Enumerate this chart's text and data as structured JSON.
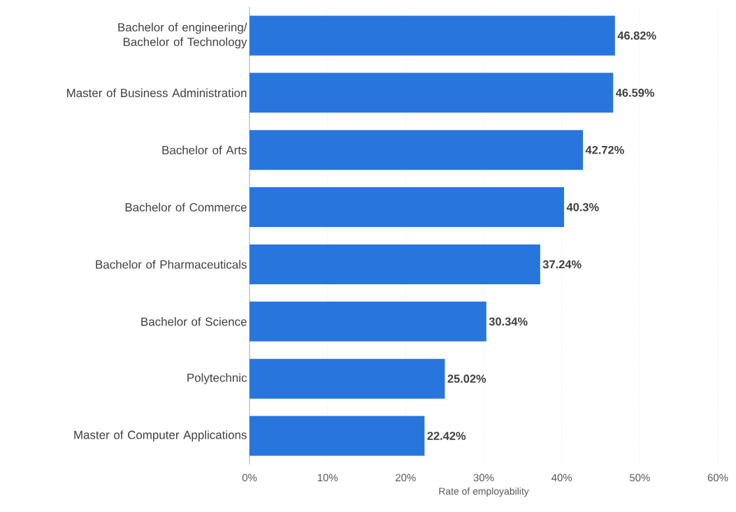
{
  "chart_data": {
    "type": "bar",
    "orientation": "horizontal",
    "xlabel": "Rate of employability",
    "categories": [
      "Bachelor of engineering/ Bachelor of Technology",
      "Master of Business Administration",
      "Bachelor of Arts",
      "Bachelor of Commerce",
      "Bachelor of Pharmaceuticals",
      "Bachelor of Science",
      "Polytechnic",
      "Master of Computer Applications"
    ],
    "values": [
      46.82,
      46.59,
      42.72,
      40.3,
      37.24,
      30.34,
      25.02,
      22.42
    ],
    "value_labels": [
      "46.82%",
      "46.59%",
      "42.72%",
      "40.3%",
      "37.24%",
      "30.34%",
      "25.02%",
      "22.42%"
    ],
    "color": "#2876dd",
    "xlim": [
      0,
      60
    ],
    "xticks": [
      {
        "value": 0,
        "label": "0%"
      },
      {
        "value": 10,
        "label": "10%"
      },
      {
        "value": 20,
        "label": "20%"
      },
      {
        "value": 30,
        "label": "30%"
      },
      {
        "value": 40,
        "label": "40%"
      },
      {
        "value": 50,
        "label": "50%"
      },
      {
        "value": 60,
        "label": "60%"
      }
    ],
    "grid": "x"
  }
}
